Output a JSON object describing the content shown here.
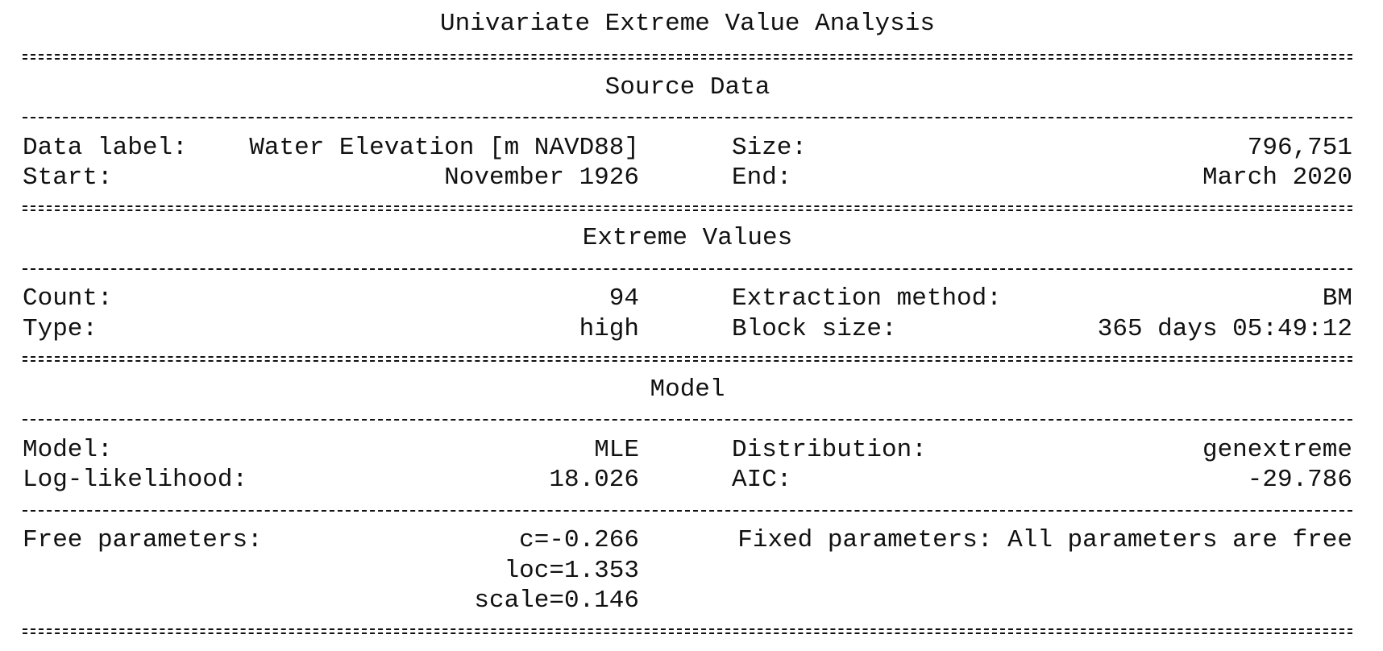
{
  "report": {
    "title": "Univariate Extreme Value Analysis",
    "source_data": {
      "heading": "Source Data",
      "data_label_label": "Data label:",
      "data_label_value": "Water Elevation [m NAVD88]",
      "size_label": "Size:",
      "size_value": "796,751",
      "start_label": "Start:",
      "start_value": "November 1926",
      "end_label": "End:",
      "end_value": "March 2020"
    },
    "extreme_values": {
      "heading": "Extreme Values",
      "count_label": "Count:",
      "count_value": "94",
      "extraction_method_label": "Extraction method:",
      "extraction_method_value": "BM",
      "type_label": "Type:",
      "type_value": "high",
      "block_size_label": "Block size:",
      "block_size_value": "365 days 05:49:12"
    },
    "model": {
      "heading": "Model",
      "model_label": "Model:",
      "model_value": "MLE",
      "distribution_label": "Distribution:",
      "distribution_value": "genextreme",
      "loglik_label": "Log-likelihood:",
      "loglik_value": "18.026",
      "aic_label": "AIC:",
      "aic_value": "-29.786",
      "free_params_label": "Free parameters:",
      "free_params": [
        "c=-0.266",
        "loc=1.353",
        "scale=0.146"
      ],
      "fixed_params_text": "Fixed parameters: All parameters are free"
    }
  }
}
